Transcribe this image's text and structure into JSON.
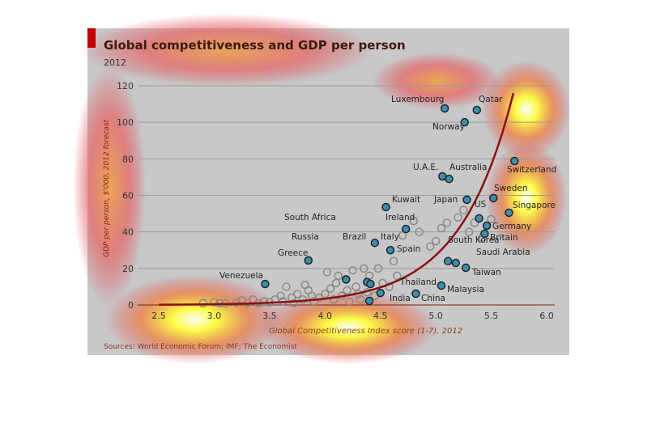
{
  "chart_data": {
    "type": "scatter",
    "title": "Global competitiveness and GDP per person",
    "subtitle": "2012",
    "xlabel": "Global Competitiveness Index score (1-7), 2012",
    "ylabel": "GDP per person, $'000, 2012 forecast",
    "xlim": [
      2.5,
      6.0
    ],
    "ylim": [
      0,
      120
    ],
    "x_ticks": [
      "2.5",
      "3.0",
      "3.5",
      "4.0",
      "4.5",
      "5.0",
      "5.5",
      "6.0"
    ],
    "y_ticks": [
      "0",
      "20",
      "40",
      "60",
      "80",
      "100",
      "120"
    ],
    "grid": "horizontal",
    "source": "Sources: World Economic Forum; IMF; The Economist",
    "trend": {
      "type": "exponential",
      "a": 0.154,
      "b": 2.07,
      "x_from": 2.5,
      "x_to": 5.7
    },
    "labeled_points": [
      {
        "label": "Luxembourg",
        "x": 5.08,
        "y": 107.6
      },
      {
        "label": "Qatar",
        "x": 5.37,
        "y": 106.7
      },
      {
        "label": "Norway",
        "x": 5.26,
        "y": 100
      },
      {
        "label": "Switzerland",
        "x": 5.71,
        "y": 78.8
      },
      {
        "label": "U.A.E.",
        "x": 5.06,
        "y": 70.4
      },
      {
        "label": "Australia",
        "x": 5.12,
        "y": 69
      },
      {
        "label": "Sweden",
        "x": 5.52,
        "y": 58.5
      },
      {
        "label": "Japan",
        "x": 5.28,
        "y": 57.6
      },
      {
        "label": "Kuwait",
        "x": 4.55,
        "y": 53.6
      },
      {
        "label": "Singapore",
        "x": 5.66,
        "y": 50.5
      },
      {
        "label": "US",
        "x": 5.39,
        "y": 47.4
      },
      {
        "label": "Germany",
        "x": 5.46,
        "y": 43.4
      },
      {
        "label": "Ireland",
        "x": 4.73,
        "y": 41.6
      },
      {
        "label": "Britain",
        "x": 5.44,
        "y": 39
      },
      {
        "label": "Italy",
        "x": 4.45,
        "y": 34
      },
      {
        "label": "Spain",
        "x": 4.59,
        "y": 30
      },
      {
        "label": "Brazil",
        "x": 4.38,
        "y": 12.5
      },
      {
        "label": "South Korea",
        "x": 5.11,
        "y": 24
      },
      {
        "label": "Saudi Arabia",
        "x": 5.18,
        "y": 23
      },
      {
        "label": "Taiwan",
        "x": 5.27,
        "y": 20.4
      },
      {
        "label": "Greece",
        "x": 3.85,
        "y": 24.4
      },
      {
        "label": "Venezuela",
        "x": 3.46,
        "y": 11.5
      },
      {
        "label": "South Africa",
        "x": 4.41,
        "y": 11.5
      },
      {
        "label": "Russia",
        "x": 4.19,
        "y": 14
      },
      {
        "label": "Malaysia",
        "x": 5.05,
        "y": 10.6
      },
      {
        "label": "Thailand",
        "x": 4.5,
        "y": 6.6
      },
      {
        "label": "China",
        "x": 4.82,
        "y": 6.2
      },
      {
        "label": "India",
        "x": 4.4,
        "y": 2.2
      }
    ],
    "other_points": [
      [
        2.9,
        1
      ],
      [
        3.0,
        1.5
      ],
      [
        3.05,
        1
      ],
      [
        3.1,
        0.8
      ],
      [
        3.2,
        1.2
      ],
      [
        3.25,
        2.5
      ],
      [
        3.3,
        1
      ],
      [
        3.35,
        3
      ],
      [
        3.4,
        0.8
      ],
      [
        3.45,
        2
      ],
      [
        3.5,
        1.5
      ],
      [
        3.55,
        3
      ],
      [
        3.6,
        5
      ],
      [
        3.62,
        2
      ],
      [
        3.65,
        10
      ],
      [
        3.7,
        4
      ],
      [
        3.72,
        1
      ],
      [
        3.75,
        6
      ],
      [
        3.8,
        3
      ],
      [
        3.82,
        11
      ],
      [
        3.85,
        8
      ],
      [
        3.88,
        5
      ],
      [
        3.9,
        2
      ],
      [
        3.95,
        4
      ],
      [
        4.0,
        6
      ],
      [
        4.02,
        18
      ],
      [
        4.05,
        9
      ],
      [
        4.08,
        3
      ],
      [
        4.1,
        12
      ],
      [
        4.12,
        16
      ],
      [
        4.15,
        5
      ],
      [
        4.2,
        8
      ],
      [
        4.22,
        2
      ],
      [
        4.25,
        19
      ],
      [
        4.28,
        10
      ],
      [
        4.3,
        6
      ],
      [
        4.32,
        3
      ],
      [
        4.35,
        20
      ],
      [
        4.38,
        7
      ],
      [
        4.4,
        16
      ],
      [
        4.45,
        5
      ],
      [
        4.48,
        20
      ],
      [
        4.52,
        12
      ],
      [
        4.58,
        10
      ],
      [
        4.62,
        24
      ],
      [
        4.65,
        16
      ],
      [
        4.7,
        38
      ],
      [
        4.8,
        46
      ],
      [
        4.85,
        40
      ],
      [
        4.95,
        32
      ],
      [
        5.0,
        35
      ],
      [
        5.05,
        42
      ],
      [
        5.1,
        45
      ],
      [
        5.2,
        48
      ],
      [
        5.25,
        52
      ],
      [
        5.3,
        40
      ],
      [
        5.35,
        45
      ],
      [
        5.5,
        47
      ],
      [
        5.42,
        37
      ]
    ],
    "annotations": []
  }
}
